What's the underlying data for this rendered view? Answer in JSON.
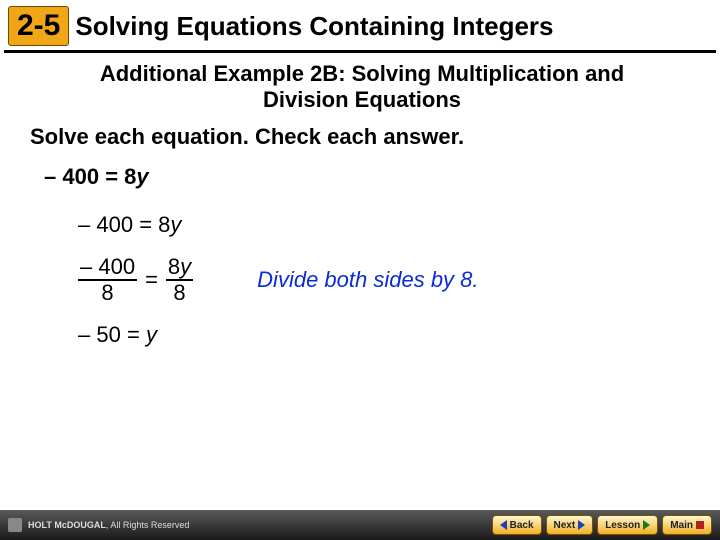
{
  "header": {
    "badge": "2-5",
    "title": "Solving Equations Containing Integers",
    "title_fontsize": 26,
    "badge_bg": "#f0a616"
  },
  "subtitle": {
    "text_line1": "Additional Example 2B: Solving Multiplication and",
    "text_line2": "Division Equations",
    "fontsize": 22
  },
  "instruction": {
    "text": "Solve each equation. Check each answer.",
    "fontsize": 22
  },
  "equation": {
    "lhs": "– 400",
    "eq": "=",
    "coef": "8",
    "var": "y",
    "fontsize": 22
  },
  "steps": {
    "fontsize": 22,
    "step1": {
      "lhs": "– 400",
      "eq": "=",
      "coef": "8",
      "var": "y"
    },
    "step2": {
      "left_num": "– 400",
      "left_den": "8",
      "eq": "=",
      "right_num_coef": "8",
      "right_num_var": "y",
      "right_den": "8",
      "hint": "Divide both sides by 8."
    },
    "step3": {
      "lhs": "– 50",
      "eq": "=",
      "var": "y"
    }
  },
  "footer": {
    "brand": "HOLT McDOUGAL",
    "rights": "All Rights Reserved",
    "buttons": {
      "back": "Back",
      "next": "Next",
      "lesson": "Lesson",
      "main": "Main"
    }
  },
  "colors": {
    "hint": "#0b2bd6",
    "text": "#000000",
    "footer_bg_top": "#5a5a5a",
    "footer_bg_bot": "#1a1a1a",
    "btn_top": "#fff7d0",
    "btn_bot": "#f2b024"
  }
}
